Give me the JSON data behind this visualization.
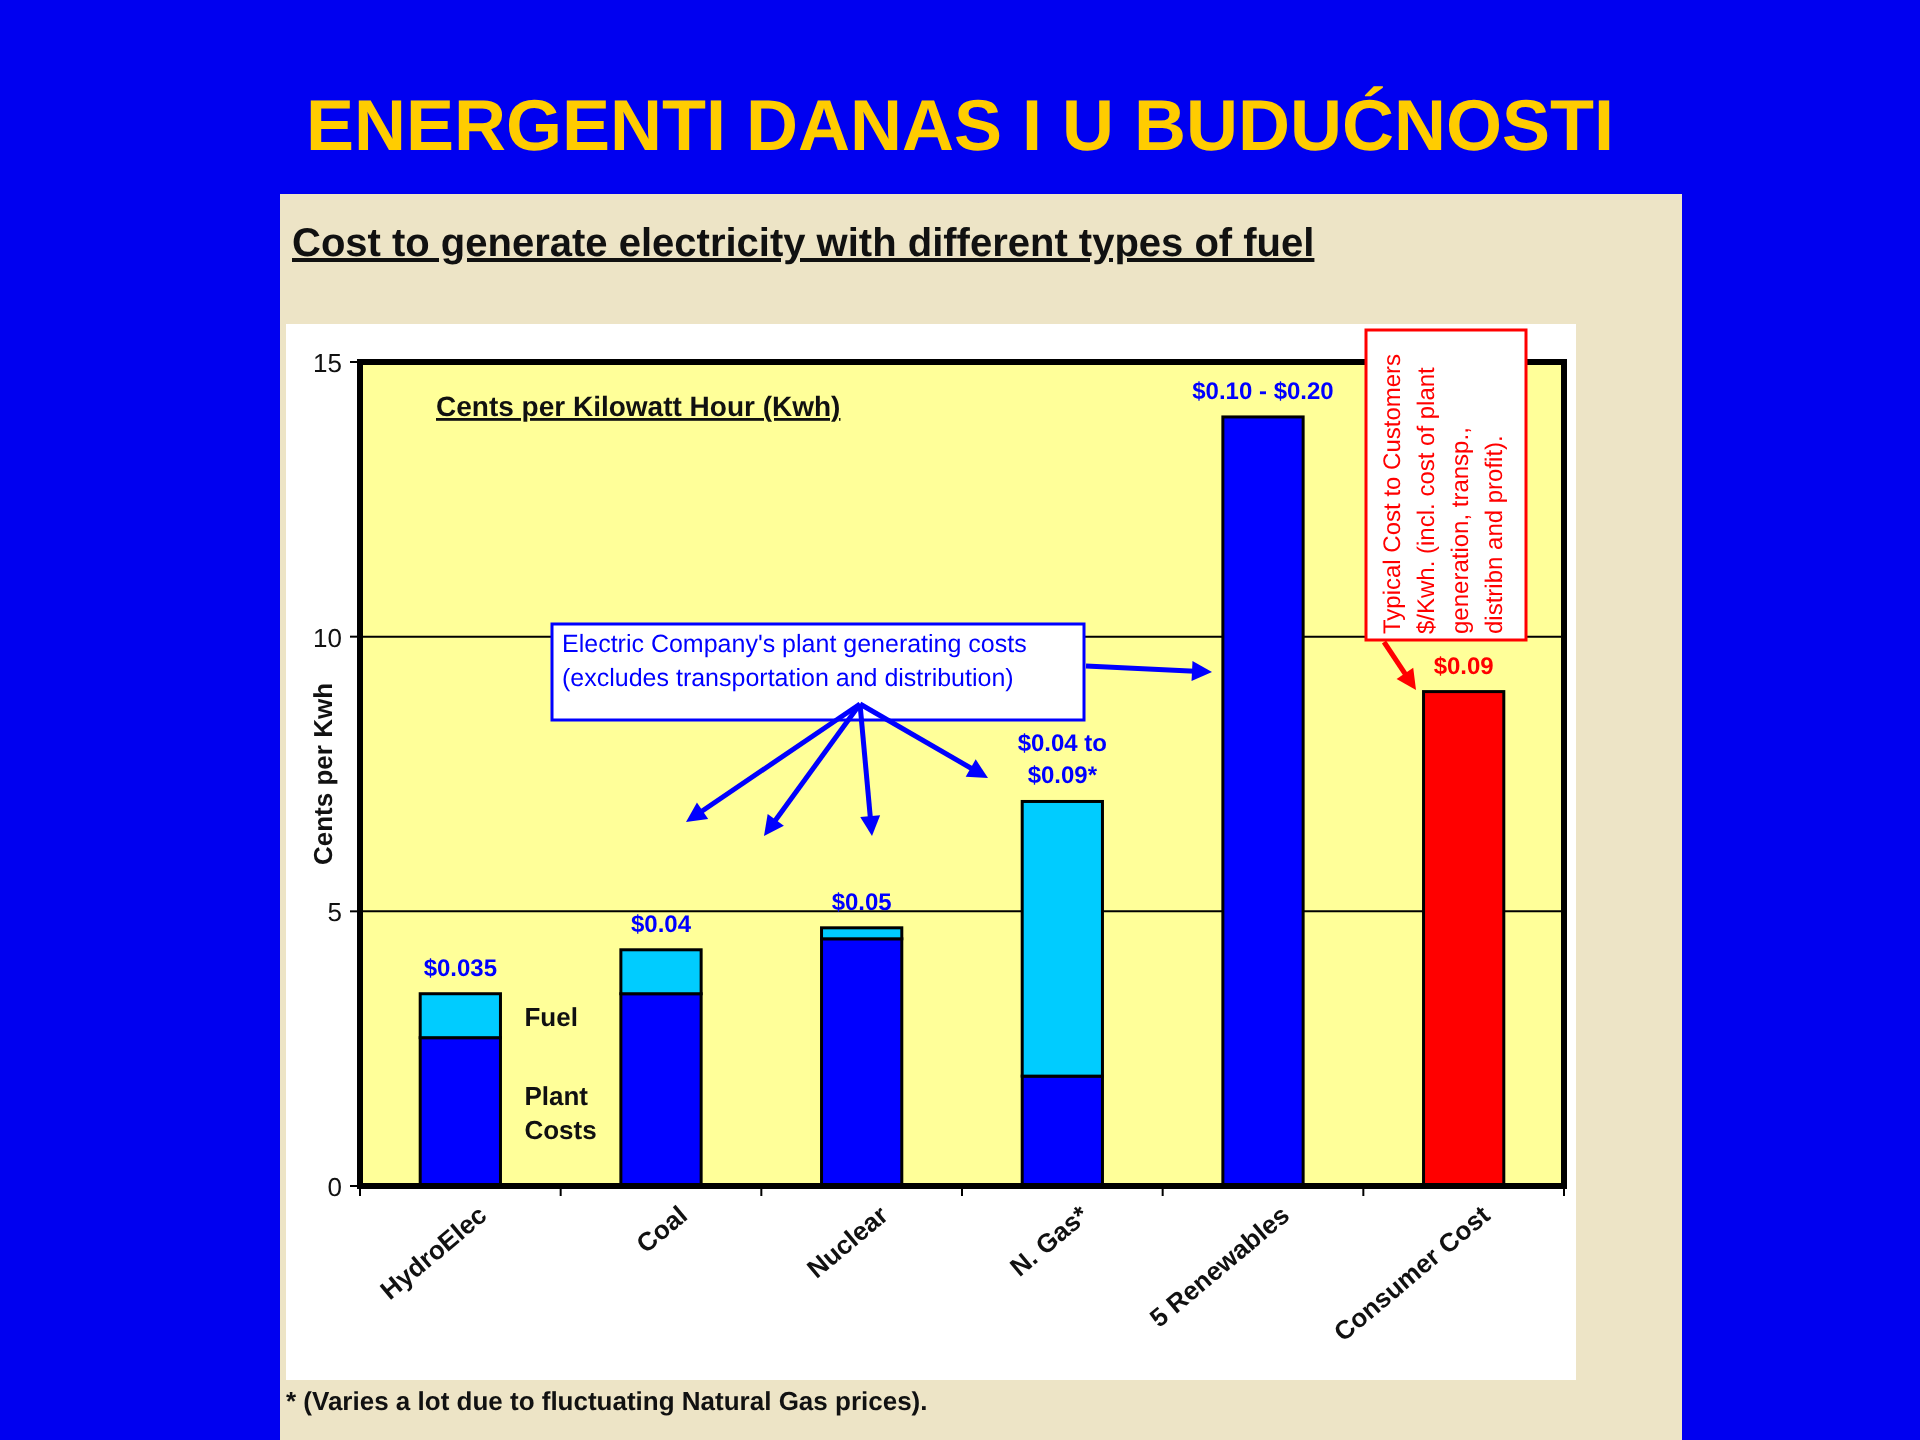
{
  "chart_data": {
    "type": "bar",
    "title": "ENERGENTI DANAS I U BUDUĆNOSTI",
    "subtitle": "Cost to generate electricity with different types of fuel",
    "ylabel": "Cents per Kwh",
    "categories": [
      "HydroElec",
      "Coal",
      "Nuclear",
      "N. Gas*",
      "5 Renewables",
      "Consumer Cost"
    ],
    "series": [
      {
        "name": "Plant Costs",
        "color": "#0000ff",
        "values": [
          2.7,
          3.5,
          4.5,
          2.0,
          14.0,
          null
        ]
      },
      {
        "name": "Fuel",
        "color": "#00ccff",
        "values": [
          0.8,
          0.8,
          0.2,
          5.0,
          null,
          null
        ]
      },
      {
        "color": "#ff0000",
        "values": [
          null,
          null,
          null,
          null,
          null,
          9.0
        ]
      }
    ],
    "stacked": true,
    "ylim": [
      0,
      15
    ],
    "yticks": [
      0,
      5,
      10,
      15
    ],
    "grid": "y",
    "annotations": [
      "Cents per Kilowatt Hour (Kwh)",
      "Electric Company's plant generating costs (excludes transportation and distribution)",
      "Typical Cost to Customers $/Kwh. (incl. cost of plant generation, transp., distribn and profit).",
      "* (Varies a lot due to fluctuating Natural Gas prices).",
      {
        "text": "$0.035",
        "x": "HydroElec",
        "y": 3.5
      },
      {
        "text": "$0.04",
        "x": "Coal",
        "y": 4.3
      },
      {
        "text": "$0.05",
        "x": "Nuclear",
        "y": 4.7
      },
      {
        "text": "$0.04 to $0.09*",
        "x": "N. Gas*",
        "y": 7.0
      },
      {
        "text": "$0.10 - $0.20",
        "x": "5 Renewables",
        "y": 14.0
      },
      {
        "text": "$0.09",
        "x": "Consumer Cost",
        "y": 9.0
      }
    ]
  }
}
